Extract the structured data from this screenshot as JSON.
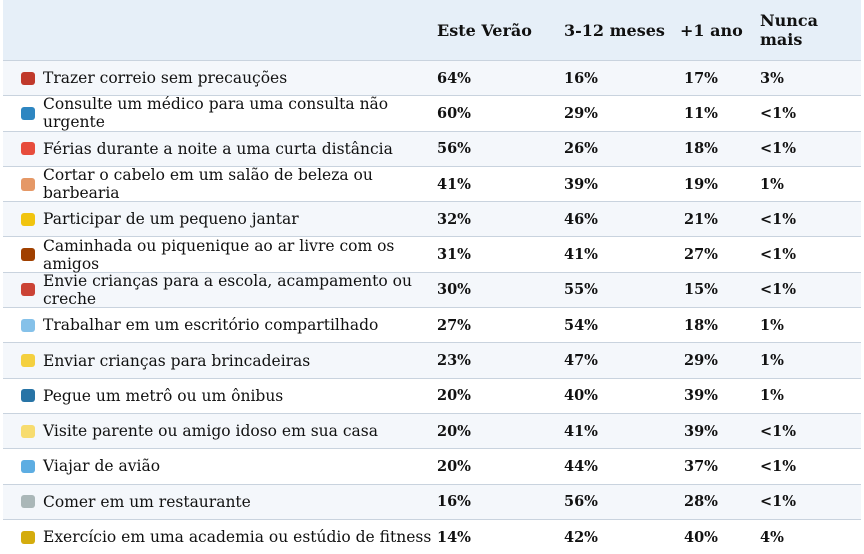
{
  "chart_data": {
    "type": "table",
    "columns": [
      "",
      "Este Verão",
      "3-12 meses",
      "+1 ano",
      "Nunca mais"
    ],
    "rows": [
      {
        "activity": "Trazer correio sem precauções",
        "icon": "mailbox-icon",
        "color": "#c0392b",
        "values": [
          "64%",
          "16%",
          "17%",
          "3%"
        ]
      },
      {
        "activity": "Consulte um médico para uma consulta não urgente",
        "icon": "doctor-icon",
        "color": "#2e86c1",
        "values": [
          "60%",
          "29%",
          "11%",
          "<1%"
        ]
      },
      {
        "activity": "Férias durante a noite a uma curta distância",
        "icon": "car-icon",
        "color": "#e74c3c",
        "values": [
          "56%",
          "26%",
          "18%",
          "<1%"
        ]
      },
      {
        "activity": "Cortar o cabelo em um salão de beleza ou barbearia",
        "icon": "haircut-icon",
        "color": "#e59866",
        "values": [
          "41%",
          "39%",
          "19%",
          "1%"
        ]
      },
      {
        "activity": "Participar de um pequeno jantar",
        "icon": "party-icon",
        "color": "#f1c40f",
        "values": [
          "32%",
          "46%",
          "21%",
          "<1%"
        ]
      },
      {
        "activity": "Caminhada ou piquenique ao ar livre com os amigos",
        "icon": "boot-icon",
        "color": "#a04000",
        "values": [
          "31%",
          "41%",
          "27%",
          "<1%"
        ]
      },
      {
        "activity": "Envie crianças para a escola, acampamento ou creche",
        "icon": "backpack-icon",
        "color": "#cb4335",
        "values": [
          "30%",
          "55%",
          "15%",
          "<1%"
        ]
      },
      {
        "activity": "Trabalhar em um escritório compartilhado",
        "icon": "office-icon",
        "color": "#85c1e9",
        "values": [
          "27%",
          "54%",
          "18%",
          "1%"
        ]
      },
      {
        "activity": "Enviar crianças para brincadeiras",
        "icon": "child-icon",
        "color": "#f4d03f",
        "values": [
          "23%",
          "47%",
          "29%",
          "1%"
        ]
      },
      {
        "activity": "Pegue um metrô ou um ônibus",
        "icon": "bus-icon",
        "color": "#2874a6",
        "values": [
          "20%",
          "40%",
          "39%",
          "1%"
        ]
      },
      {
        "activity": "Visite parente ou amigo idoso em sua casa",
        "icon": "elder-icon",
        "color": "#f7dc6f",
        "values": [
          "20%",
          "41%",
          "39%",
          "<1%"
        ]
      },
      {
        "activity": "Viajar de avião",
        "icon": "airplane-icon",
        "color": "#5dade2",
        "values": [
          "20%",
          "44%",
          "37%",
          "<1%"
        ]
      },
      {
        "activity": "Comer em um restaurante",
        "icon": "cutlery-icon",
        "color": "#aab7b8",
        "values": [
          "16%",
          "56%",
          "28%",
          "<1%"
        ]
      },
      {
        "activity": "Exercício em uma academia ou estúdio de fitness",
        "icon": "weightlift-icon",
        "color": "#d4ac0d",
        "values": [
          "14%",
          "42%",
          "40%",
          "4%"
        ]
      }
    ]
  }
}
